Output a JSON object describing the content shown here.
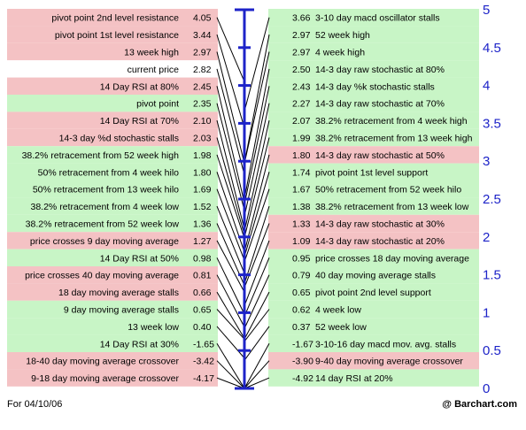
{
  "chart_data": {
    "type": "table",
    "left_rows": [
      {
        "label": "pivot point 2nd level resistance",
        "value": "4.05",
        "color": "red"
      },
      {
        "label": "pivot point 1st level resistance",
        "value": "3.44",
        "color": "red"
      },
      {
        "label": "13 week high",
        "value": "2.97",
        "color": "red"
      },
      {
        "label": "current price",
        "value": "2.82",
        "color": "white"
      },
      {
        "label": "14 Day RSI at 80%",
        "value": "2.45",
        "color": "red"
      },
      {
        "label": "pivot point",
        "value": "2.35",
        "color": "green"
      },
      {
        "label": "14 Day RSI at 70%",
        "value": "2.10",
        "color": "red"
      },
      {
        "label": "14-3 day %d stochastic stalls",
        "value": "2.03",
        "color": "red"
      },
      {
        "label": "38.2% retracement from 52 week high",
        "value": "1.98",
        "color": "green"
      },
      {
        "label": "50% retracement from 4 week hilo",
        "value": "1.80",
        "color": "green"
      },
      {
        "label": "50% retracement from 13 week hilo",
        "value": "1.69",
        "color": "green"
      },
      {
        "label": "38.2% retracement from 4 week low",
        "value": "1.52",
        "color": "green"
      },
      {
        "label": "38.2% retracement from 52 week low",
        "value": "1.36",
        "color": "green"
      },
      {
        "label": "price crosses 9 day moving average",
        "value": "1.27",
        "color": "red"
      },
      {
        "label": "14 Day RSI at 50%",
        "value": "0.98",
        "color": "green"
      },
      {
        "label": "price crosses 40 day moving average",
        "value": "0.81",
        "color": "red"
      },
      {
        "label": "18 day moving average stalls",
        "value": "0.66",
        "color": "red"
      },
      {
        "label": "9 day moving average stalls",
        "value": "0.65",
        "color": "green"
      },
      {
        "label": "13 week low",
        "value": "0.40",
        "color": "green"
      },
      {
        "label": "14 Day RSI at 30%",
        "value": "-1.65",
        "color": "green"
      },
      {
        "label": "18-40 day moving average crossover",
        "value": "-3.42",
        "color": "red"
      },
      {
        "label": "9-18 day moving average crossover",
        "value": "-4.17",
        "color": "red"
      }
    ],
    "right_rows": [
      {
        "label": "3-10 day macd oscillator stalls",
        "value": "3.66",
        "color": "green"
      },
      {
        "label": "52 week high",
        "value": "2.97",
        "color": "green"
      },
      {
        "label": "4 week high",
        "value": "2.97",
        "color": "green"
      },
      {
        "label": "14-3 day raw stochastic at 80%",
        "value": "2.50",
        "color": "green"
      },
      {
        "label": "14-3 day %k stochastic stalls",
        "value": "2.43",
        "color": "green"
      },
      {
        "label": "14-3 day raw stochastic at 70%",
        "value": "2.27",
        "color": "green"
      },
      {
        "label": "38.2% retracement from 4 week high",
        "value": "2.07",
        "color": "green"
      },
      {
        "label": "38.2% retracement from 13 week high",
        "value": "1.99",
        "color": "green"
      },
      {
        "label": "14-3 day raw stochastic at 50%",
        "value": "1.80",
        "color": "red"
      },
      {
        "label": "pivot point 1st level support",
        "value": "1.74",
        "color": "green"
      },
      {
        "label": "50% retracement from 52 week hilo",
        "value": "1.67",
        "color": "green"
      },
      {
        "label": "38.2% retracement from 13 week low",
        "value": "1.38",
        "color": "green"
      },
      {
        "label": "14-3 day raw stochastic at 30%",
        "value": "1.33",
        "color": "red"
      },
      {
        "label": "14-3 day raw stochastic at 20%",
        "value": "1.09",
        "color": "red"
      },
      {
        "label": "price crosses 18 day moving average",
        "value": "0.95",
        "color": "green"
      },
      {
        "label": "40 day moving average stalls",
        "value": "0.79",
        "color": "green"
      },
      {
        "label": "pivot point 2nd level support",
        "value": "0.65",
        "color": "green"
      },
      {
        "label": "4 week low",
        "value": "0.62",
        "color": "green"
      },
      {
        "label": "52 week low",
        "value": "0.37",
        "color": "green"
      },
      {
        "label": "3-10-16 day macd mov. avg. stalls",
        "value": "-1.67",
        "color": "green"
      },
      {
        "label": "9-40 day moving average crossover",
        "value": "-3.90",
        "color": "red"
      },
      {
        "label": "14 day RSI at 20%",
        "value": "-4.92",
        "color": "green"
      }
    ],
    "scale_ticks": [
      "5",
      "4.5",
      "4",
      "3.5",
      "3",
      "2.5",
      "2",
      "1.5",
      "1",
      "0.5",
      "0"
    ],
    "ylim": [
      0,
      5
    ]
  },
  "footer": {
    "date_text": "For 04/10/06",
    "credit": "@ Barchart.com"
  },
  "colors": {
    "red": "#f4c2c4",
    "green": "#c8f5c6",
    "white": "#ffffff",
    "axis": "#1d23c8",
    "line": "#000000"
  }
}
